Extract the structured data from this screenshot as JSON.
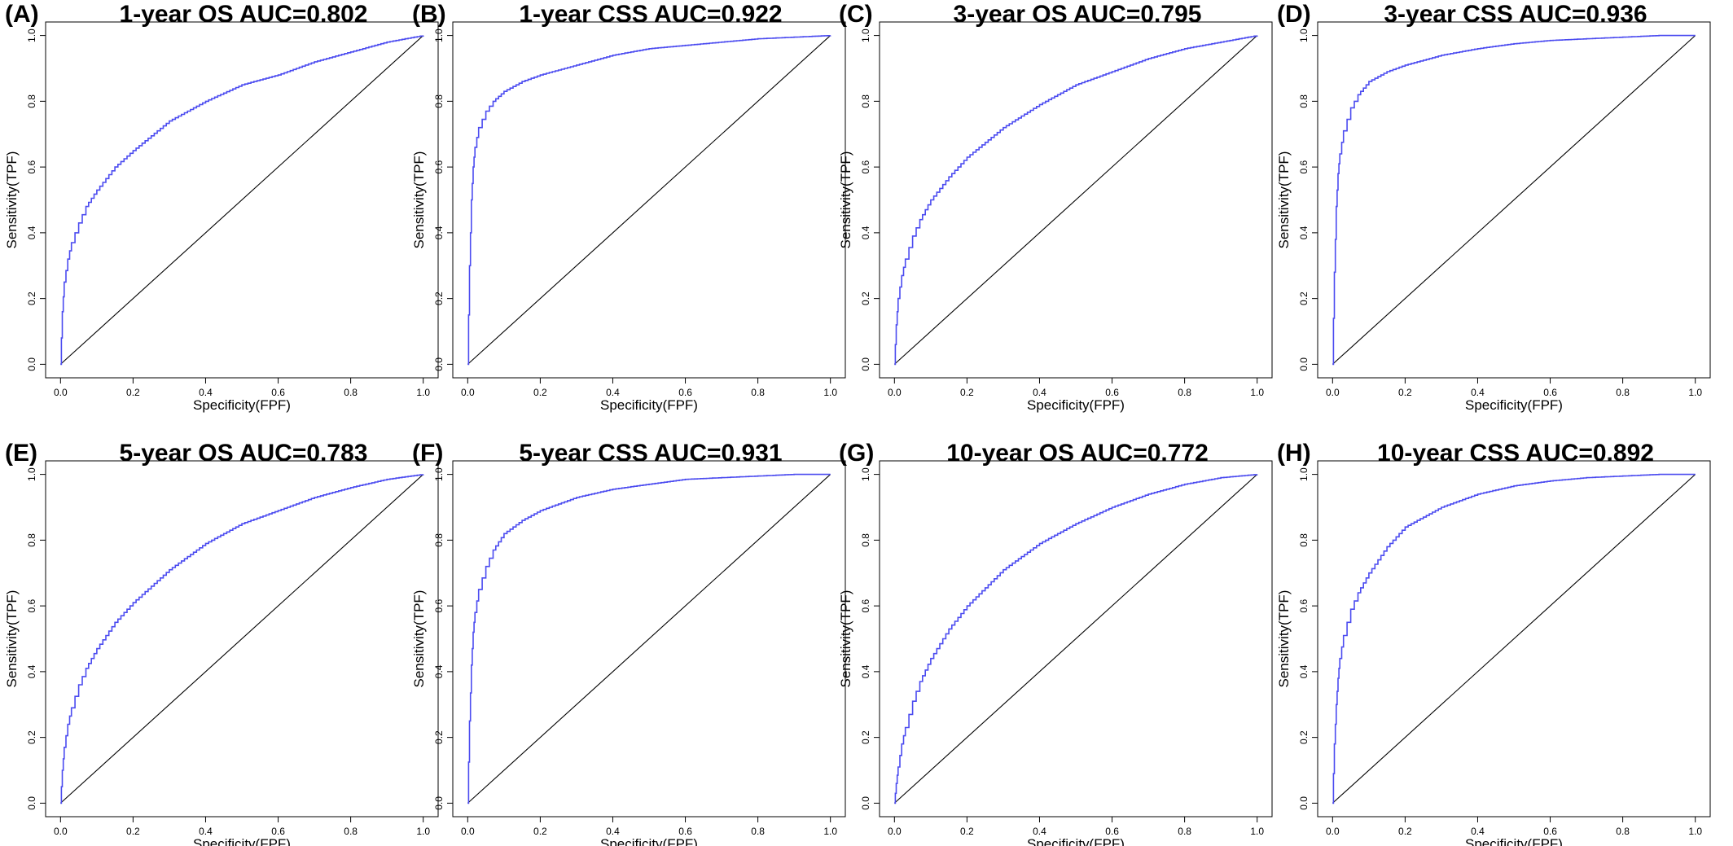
{
  "colors": {
    "roc_line": "#4b4bf0",
    "reference_line": "#000000",
    "frame": "#000000"
  },
  "chart_data": [
    {
      "type": "line",
      "panel_letter": "(A)",
      "title": "1-year OS AUC=0.802",
      "xlabel": "Specificity(FPF)",
      "ylabel": "Sensitivity(TPF)",
      "xlim": [
        0,
        1
      ],
      "ylim": [
        0,
        1
      ],
      "xticks": [
        "0.0",
        "0.2",
        "0.4",
        "0.6",
        "0.8",
        "1.0"
      ],
      "yticks": [
        "0.0",
        "0.2",
        "0.4",
        "0.6",
        "0.8",
        "1.0"
      ],
      "grid": false,
      "series": [
        {
          "x": [
            0,
            0.005,
            0.01,
            0.02,
            0.03,
            0.05,
            0.07,
            0.1,
            0.15,
            0.2,
            0.3,
            0.4,
            0.5,
            0.6,
            0.7,
            0.8,
            0.9,
            1.0
          ],
          "y": [
            0,
            0.16,
            0.25,
            0.32,
            0.37,
            0.43,
            0.48,
            0.53,
            0.6,
            0.65,
            0.74,
            0.8,
            0.85,
            0.88,
            0.92,
            0.95,
            0.98,
            1.0
          ]
        },
        {
          "x": [
            0,
            1
          ],
          "y": [
            0,
            1
          ]
        }
      ]
    },
    {
      "type": "line",
      "panel_letter": "(B)",
      "title": "1-year CSS AUC=0.922",
      "xlabel": "Specificity(FPF)",
      "ylabel": "Sensitivity(TPF)",
      "xlim": [
        0,
        1
      ],
      "ylim": [
        0,
        1
      ],
      "xticks": [
        "0.0",
        "0.2",
        "0.4",
        "0.6",
        "0.8",
        "1.0"
      ],
      "yticks": [
        "0.0",
        "0.2",
        "0.4",
        "0.6",
        "0.8",
        "1.0"
      ],
      "grid": false,
      "series": [
        {
          "x": [
            0,
            0.005,
            0.01,
            0.015,
            0.02,
            0.03,
            0.05,
            0.07,
            0.1,
            0.15,
            0.2,
            0.3,
            0.4,
            0.5,
            0.6,
            0.7,
            0.8,
            0.9,
            1.0
          ],
          "y": [
            0,
            0.3,
            0.5,
            0.6,
            0.66,
            0.72,
            0.77,
            0.8,
            0.83,
            0.86,
            0.88,
            0.91,
            0.94,
            0.96,
            0.97,
            0.98,
            0.99,
            0.995,
            1.0
          ]
        },
        {
          "x": [
            0,
            1
          ],
          "y": [
            0,
            1
          ]
        }
      ]
    },
    {
      "type": "line",
      "panel_letter": "(C)",
      "title": "3-year OS AUC=0.795",
      "xlabel": "Specificity(FPF)",
      "ylabel": "Sensitivity(TPF)",
      "xlim": [
        0,
        1
      ],
      "ylim": [
        0,
        1
      ],
      "xticks": [
        "0.0",
        "0.2",
        "0.4",
        "0.6",
        "0.8",
        "1.0"
      ],
      "yticks": [
        "0.0",
        "0.2",
        "0.4",
        "0.6",
        "0.8",
        "1.0"
      ],
      "grid": false,
      "series": [
        {
          "x": [
            0,
            0.005,
            0.01,
            0.02,
            0.03,
            0.05,
            0.07,
            0.1,
            0.15,
            0.2,
            0.3,
            0.4,
            0.5,
            0.6,
            0.7,
            0.8,
            0.9,
            1.0
          ],
          "y": [
            0,
            0.12,
            0.2,
            0.27,
            0.32,
            0.39,
            0.44,
            0.5,
            0.57,
            0.63,
            0.72,
            0.79,
            0.85,
            0.89,
            0.93,
            0.96,
            0.98,
            1.0
          ]
        },
        {
          "x": [
            0,
            1
          ],
          "y": [
            0,
            1
          ]
        }
      ]
    },
    {
      "type": "line",
      "panel_letter": "(D)",
      "title": "3-year CSS AUC=0.936",
      "xlabel": "Specificity(FPF)",
      "ylabel": "Sensitivity(TPF)",
      "xlim": [
        0,
        1
      ],
      "ylim": [
        0,
        1
      ],
      "xticks": [
        "0.0",
        "0.2",
        "0.4",
        "0.6",
        "0.8",
        "1.0"
      ],
      "yticks": [
        "0.0",
        "0.2",
        "0.4",
        "0.6",
        "0.8",
        "1.0"
      ],
      "grid": false,
      "series": [
        {
          "x": [
            0,
            0.005,
            0.01,
            0.015,
            0.02,
            0.03,
            0.05,
            0.07,
            0.1,
            0.15,
            0.2,
            0.3,
            0.4,
            0.5,
            0.6,
            0.7,
            0.8,
            0.9,
            1.0
          ],
          "y": [
            0,
            0.28,
            0.48,
            0.58,
            0.64,
            0.71,
            0.78,
            0.82,
            0.86,
            0.89,
            0.91,
            0.94,
            0.96,
            0.975,
            0.985,
            0.99,
            0.995,
            1.0,
            1.0
          ]
        },
        {
          "x": [
            0,
            1
          ],
          "y": [
            0,
            1
          ]
        }
      ]
    },
    {
      "type": "line",
      "panel_letter": "(E)",
      "title": "5-year OS AUC=0.783",
      "xlabel": "Specificity(FPF)",
      "ylabel": "Sensitivity(TPF)",
      "xlim": [
        0,
        1
      ],
      "ylim": [
        0,
        1
      ],
      "xticks": [
        "0.0",
        "0.2",
        "0.4",
        "0.6",
        "0.8",
        "1.0"
      ],
      "yticks": [
        "0.0",
        "0.2",
        "0.4",
        "0.6",
        "0.8",
        "1.0"
      ],
      "grid": false,
      "series": [
        {
          "x": [
            0,
            0.005,
            0.01,
            0.02,
            0.03,
            0.05,
            0.07,
            0.1,
            0.15,
            0.2,
            0.3,
            0.4,
            0.5,
            0.6,
            0.7,
            0.8,
            0.9,
            1.0
          ],
          "y": [
            0,
            0.1,
            0.17,
            0.24,
            0.29,
            0.36,
            0.41,
            0.47,
            0.55,
            0.61,
            0.71,
            0.79,
            0.85,
            0.89,
            0.93,
            0.96,
            0.985,
            1.0
          ]
        },
        {
          "x": [
            0,
            1
          ],
          "y": [
            0,
            1
          ]
        }
      ]
    },
    {
      "type": "line",
      "panel_letter": "(F)",
      "title": "5-year CSS AUC=0.931",
      "xlabel": "Specificity(FPF)",
      "ylabel": "Sensitivity(TPF)",
      "xlim": [
        0,
        1
      ],
      "ylim": [
        0,
        1
      ],
      "xticks": [
        "0.0",
        "0.2",
        "0.4",
        "0.6",
        "0.8",
        "1.0"
      ],
      "yticks": [
        "0.0",
        "0.2",
        "0.4",
        "0.6",
        "0.8",
        "1.0"
      ],
      "grid": false,
      "series": [
        {
          "x": [
            0,
            0.005,
            0.01,
            0.015,
            0.02,
            0.03,
            0.05,
            0.07,
            0.1,
            0.15,
            0.2,
            0.3,
            0.4,
            0.5,
            0.6,
            0.7,
            0.8,
            0.9,
            1.0
          ],
          "y": [
            0,
            0.25,
            0.42,
            0.52,
            0.58,
            0.65,
            0.72,
            0.77,
            0.82,
            0.86,
            0.89,
            0.93,
            0.955,
            0.97,
            0.985,
            0.99,
            0.995,
            1.0,
            1.0
          ]
        },
        {
          "x": [
            0,
            1
          ],
          "y": [
            0,
            1
          ]
        }
      ]
    },
    {
      "type": "line",
      "panel_letter": "(G)",
      "title": "10-year OS AUC=0.772",
      "xlabel": "Specificity(FPF)",
      "ylabel": "Sensitivity(TPF)",
      "xlim": [
        0,
        1
      ],
      "ylim": [
        0,
        1
      ],
      "xticks": [
        "0.0",
        "0.2",
        "0.4",
        "0.6",
        "0.8",
        "1.0"
      ],
      "yticks": [
        "0.0",
        "0.2",
        "0.4",
        "0.6",
        "0.8",
        "1.0"
      ],
      "grid": false,
      "series": [
        {
          "x": [
            0,
            0.005,
            0.01,
            0.02,
            0.03,
            0.05,
            0.07,
            0.1,
            0.15,
            0.2,
            0.3,
            0.4,
            0.5,
            0.6,
            0.7,
            0.8,
            0.9,
            1.0
          ],
          "y": [
            0,
            0.06,
            0.11,
            0.18,
            0.23,
            0.31,
            0.37,
            0.44,
            0.53,
            0.6,
            0.71,
            0.79,
            0.85,
            0.9,
            0.94,
            0.97,
            0.99,
            1.0
          ]
        },
        {
          "x": [
            0,
            1
          ],
          "y": [
            0,
            1
          ]
        }
      ]
    },
    {
      "type": "line",
      "panel_letter": "(H)",
      "title": "10-year CSS AUC=0.892",
      "xlabel": "Specificity(FPF)",
      "ylabel": "Sensitivity(TPF)",
      "xlim": [
        0,
        1
      ],
      "ylim": [
        0,
        1
      ],
      "xticks": [
        "0.0",
        "0.2",
        "0.4",
        "0.6",
        "0.8",
        "1.0"
      ],
      "yticks": [
        "0.0",
        "0.2",
        "0.4",
        "0.6",
        "0.8",
        "1.0"
      ],
      "grid": false,
      "series": [
        {
          "x": [
            0,
            0.005,
            0.01,
            0.015,
            0.02,
            0.03,
            0.05,
            0.07,
            0.1,
            0.15,
            0.2,
            0.3,
            0.4,
            0.5,
            0.6,
            0.7,
            0.8,
            0.9,
            1.0
          ],
          "y": [
            0,
            0.18,
            0.3,
            0.38,
            0.44,
            0.51,
            0.59,
            0.64,
            0.7,
            0.78,
            0.84,
            0.9,
            0.94,
            0.965,
            0.98,
            0.99,
            0.995,
            1.0,
            1.0
          ]
        },
        {
          "x": [
            0,
            1
          ],
          "y": [
            0,
            1
          ]
        }
      ]
    }
  ]
}
